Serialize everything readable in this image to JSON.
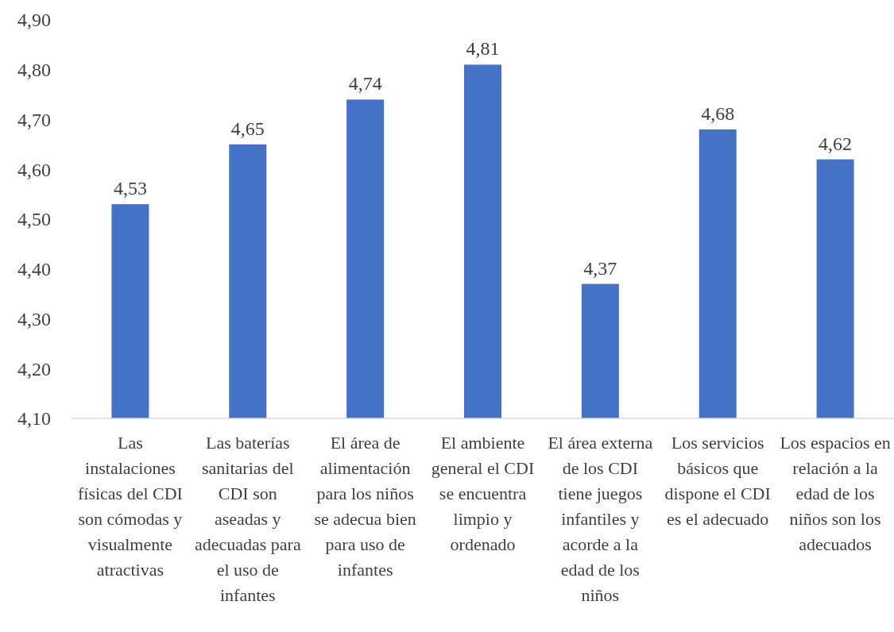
{
  "chart_data": {
    "type": "bar",
    "categories": [
      "Las instalaciones físicas del CDI son cómodas y visualmente atractivas",
      "Las baterías sanitarias del CDI son aseadas y adecuadas para el uso de infantes",
      "El área de alimentación para los niños se adecua bien para uso de infantes",
      "El ambiente general el CDI se encuentra limpio y ordenado",
      "El área externa de los CDI tiene juegos infantiles y acorde a la edad de los niños",
      "Los servicios básicos que dispone el CDI es el adecuado",
      "Los espacios en relación a la edad de los niños son los adecuados"
    ],
    "values": [
      4.53,
      4.65,
      4.74,
      4.81,
      4.37,
      4.68,
      4.62
    ],
    "value_labels": [
      "4,53",
      "4,65",
      "4,74",
      "4,81",
      "4,37",
      "4,68",
      "4,62"
    ],
    "color": "#4472c4",
    "ylim": [
      4.1,
      4.9
    ],
    "yticks": [
      {
        "value": 4.1,
        "label": "4,10"
      },
      {
        "value": 4.2,
        "label": "4,20"
      },
      {
        "value": 4.3,
        "label": "4,30"
      },
      {
        "value": 4.4,
        "label": "4,40"
      },
      {
        "value": 4.5,
        "label": "4,50"
      },
      {
        "value": 4.6,
        "label": "4,60"
      },
      {
        "value": 4.7,
        "label": "4,70"
      },
      {
        "value": 4.8,
        "label": "4,80"
      },
      {
        "value": 4.9,
        "label": "4,90"
      }
    ],
    "grid": false
  }
}
